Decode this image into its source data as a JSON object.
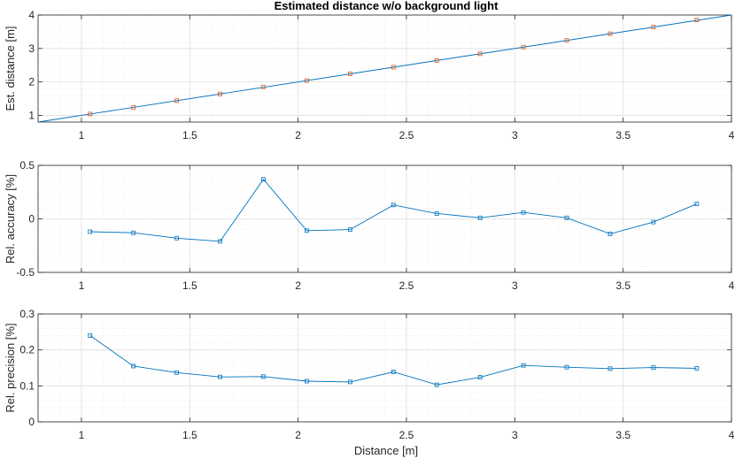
{
  "colors": {
    "line": "#0072BD",
    "marker_top": "#D95319",
    "grid_major": "#dedede",
    "grid_minor": "#efefef",
    "axis": "#262626"
  },
  "chart_data": [
    {
      "type": "line",
      "title": "Estimated distance w/o background light",
      "xlabel": "",
      "ylabel": "Est. distance [m]",
      "xlim": [
        0.8,
        4
      ],
      "ylim": [
        0.8,
        4
      ],
      "xticks": [
        "1",
        "1.5",
        "2",
        "2.5",
        "3",
        "3.5",
        "4"
      ],
      "yticks": [
        "1",
        "2",
        "3",
        "4"
      ],
      "grid": true,
      "marker": "square",
      "reference_line": {
        "x": [
          0.8,
          4
        ],
        "y": [
          0.8,
          4
        ]
      },
      "series": [
        {
          "x": [
            1.04,
            1.24,
            1.44,
            1.64,
            1.84,
            2.04,
            2.24,
            2.44,
            2.64,
            2.84,
            3.04,
            3.24,
            3.44,
            3.64,
            3.84
          ],
          "y": [
            1.04,
            1.24,
            1.44,
            1.64,
            1.85,
            2.04,
            2.24,
            2.44,
            2.64,
            2.84,
            3.04,
            3.24,
            3.44,
            3.64,
            3.85
          ]
        }
      ]
    },
    {
      "type": "line",
      "title": "",
      "xlabel": "",
      "ylabel": "Rel. accuracy [%]",
      "xlim": [
        0.8,
        4
      ],
      "ylim": [
        -0.5,
        0.5
      ],
      "xticks": [
        "1",
        "1.5",
        "2",
        "2.5",
        "3",
        "3.5",
        "4"
      ],
      "yticks": [
        "-0.5",
        "0",
        "0.5"
      ],
      "grid": true,
      "marker": "square",
      "series": [
        {
          "x": [
            1.04,
            1.24,
            1.44,
            1.64,
            1.84,
            2.04,
            2.24,
            2.44,
            2.64,
            2.84,
            3.04,
            3.24,
            3.44,
            3.64,
            3.84
          ],
          "y": [
            -0.12,
            -0.13,
            -0.18,
            -0.21,
            0.37,
            -0.11,
            -0.1,
            0.13,
            0.05,
            0.01,
            0.06,
            0.01,
            -0.14,
            -0.03,
            0.14
          ]
        }
      ]
    },
    {
      "type": "line",
      "title": "",
      "xlabel": "Distance [m]",
      "ylabel": "Rel. precision [%]",
      "xlim": [
        0.8,
        4
      ],
      "ylim": [
        0,
        0.3
      ],
      "xticks": [
        "1",
        "1.5",
        "2",
        "2.5",
        "3",
        "3.5",
        "4"
      ],
      "yticks": [
        "0",
        "0.1",
        "0.2",
        "0.3"
      ],
      "grid": true,
      "marker": "square",
      "series": [
        {
          "x": [
            1.04,
            1.24,
            1.44,
            1.64,
            1.84,
            2.04,
            2.24,
            2.44,
            2.64,
            2.84,
            3.04,
            3.24,
            3.44,
            3.64,
            3.84
          ],
          "y": [
            0.24,
            0.155,
            0.137,
            0.125,
            0.126,
            0.113,
            0.111,
            0.139,
            0.103,
            0.124,
            0.157,
            0.152,
            0.148,
            0.151,
            0.149
          ]
        }
      ]
    }
  ]
}
